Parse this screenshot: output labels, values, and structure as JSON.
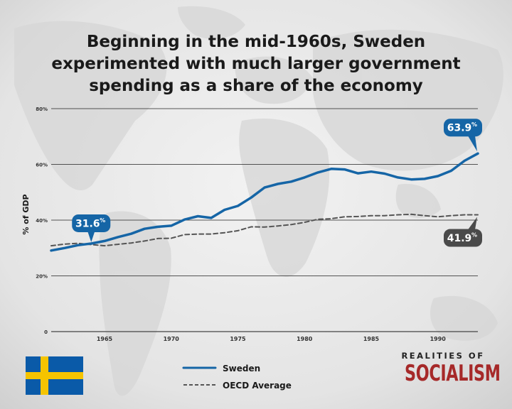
{
  "title": "Beginning in the mid-1960s, Sweden experimented with much larger government spending as a share of the economy",
  "colors": {
    "sweden": "#1565a6",
    "oecd": "#555555",
    "oecd_callout": "#4a4a4a",
    "brand": "#a62929",
    "flag_blue": "#0a5aa8",
    "flag_yellow": "#f5c400"
  },
  "chart_data": {
    "type": "line",
    "ylabel": "% of GDP",
    "ylim": [
      0,
      80
    ],
    "xlim": [
      1961,
      1993
    ],
    "yticks": [
      {
        "value": 0,
        "label": "0"
      },
      {
        "value": 20,
        "label": "20%"
      },
      {
        "value": 40,
        "label": "40%"
      },
      {
        "value": 60,
        "label": "60%"
      },
      {
        "value": 80,
        "label": "80%"
      }
    ],
    "xticks": [
      {
        "value": 1965,
        "label": "1965"
      },
      {
        "value": 1970,
        "label": "1970"
      },
      {
        "value": 1975,
        "label": "1975"
      },
      {
        "value": 1980,
        "label": "1980"
      },
      {
        "value": 1985,
        "label": "1985"
      },
      {
        "value": 1990,
        "label": "1990"
      }
    ],
    "grid": true,
    "legend_position": "bottom-center",
    "x": [
      1961,
      1962,
      1963,
      1964,
      1965,
      1966,
      1967,
      1968,
      1969,
      1970,
      1971,
      1972,
      1973,
      1974,
      1975,
      1976,
      1977,
      1978,
      1979,
      1980,
      1981,
      1982,
      1983,
      1984,
      1985,
      1986,
      1987,
      1988,
      1989,
      1990,
      1991,
      1992,
      1993
    ],
    "series": [
      {
        "name": "Sweden",
        "style": "solid",
        "values": [
          29.1,
          30.0,
          31.0,
          31.6,
          32.5,
          33.9,
          35.1,
          36.9,
          37.6,
          38.0,
          40.2,
          41.4,
          40.8,
          43.7,
          45.1,
          48.1,
          51.7,
          53.0,
          53.8,
          55.3,
          57.1,
          58.4,
          58.2,
          56.8,
          57.4,
          56.7,
          55.3,
          54.6,
          54.8,
          55.8,
          57.7,
          61.3,
          63.9
        ]
      },
      {
        "name": "OECD Average",
        "style": "dashed",
        "values": [
          30.8,
          31.4,
          31.7,
          31.2,
          30.8,
          31.3,
          31.8,
          32.5,
          33.4,
          33.5,
          34.8,
          35.0,
          35.0,
          35.5,
          36.2,
          37.6,
          37.5,
          37.9,
          38.4,
          39.2,
          40.3,
          40.5,
          41.2,
          41.3,
          41.6,
          41.6,
          41.9,
          42.1,
          41.6,
          41.2,
          41.6,
          41.9,
          41.9
        ]
      }
    ],
    "annotations": [
      {
        "id": "sweden-1964",
        "series": "Sweden",
        "x": 1964,
        "y": 31.6,
        "number": "31.6",
        "unit": "%"
      },
      {
        "id": "sweden-1993",
        "series": "Sweden",
        "x": 1993,
        "y": 63.9,
        "number": "63.9",
        "unit": "%"
      },
      {
        "id": "oecd-1993",
        "series": "OECD Average",
        "x": 1993,
        "y": 41.9,
        "number": "41.9",
        "unit": "%"
      }
    ]
  },
  "legend": [
    {
      "label": "Sweden",
      "style": "solid"
    },
    {
      "label": "OECD Average",
      "style": "dashed"
    }
  ],
  "brand": {
    "top": "REALITIES OF",
    "main": "SOCIALISM"
  },
  "flag": {
    "name": "sweden-flag"
  }
}
